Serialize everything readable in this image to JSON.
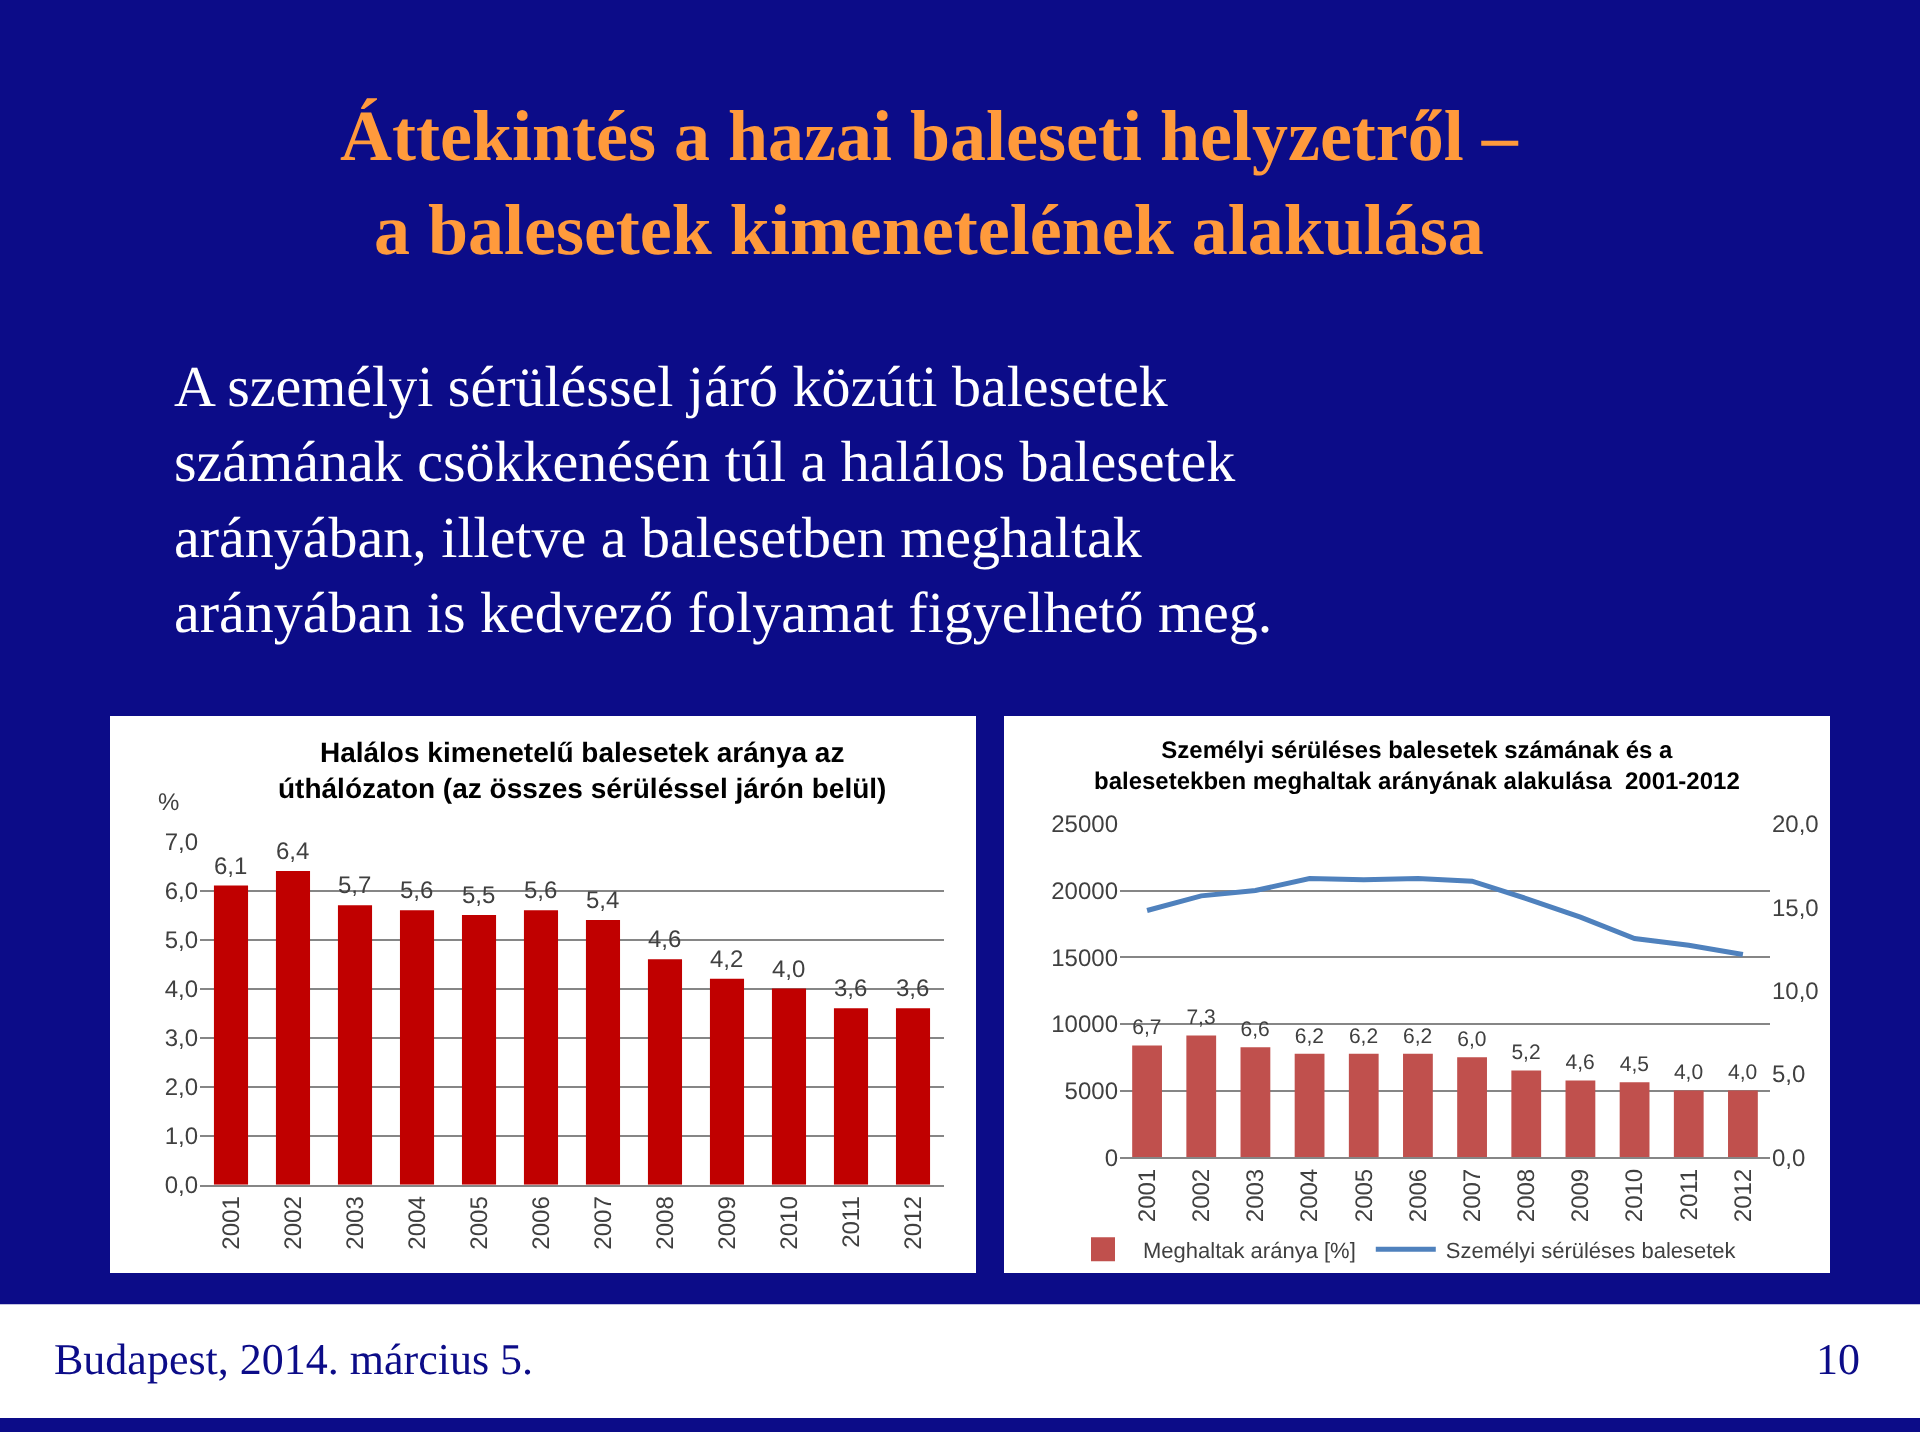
{
  "chart_data": [
    {
      "type": "other",
      "title": "Áttekintés a hazai baleseti helyzetről –\na balesetek kimenetelének alakulása",
      "annotations": [
        "A személyi sérüléssel járó közúti balesetek\nszámának csökkenésén túl a halálos balesetek\narányában, illetve a balesetben meghaltak\narányában is kedvező folyamat figyelhető meg.",
        "Budapest, 2014. március 5.",
        "10"
      ]
    },
    {
      "type": "bar",
      "title": "Halálos kimenetelű balesetek aránya az\núthálózaton (az összes sérüléssel járón belül)",
      "ylabel": "%",
      "categories": [
        "2001",
        "2002",
        "2003",
        "2004",
        "2005",
        "2006",
        "2007",
        "2008",
        "2009",
        "2010",
        "2011",
        "2012"
      ],
      "series": [
        {
          "color": "#c00000",
          "values": [
            6.1,
            6.4,
            5.7,
            5.6,
            5.5,
            5.6,
            5.4,
            4.6,
            4.2,
            4.0,
            3.6,
            3.6
          ],
          "value_labels": [
            "6,1",
            "6,4",
            "5,7",
            "5,6",
            "5,5",
            "5,6",
            "5,4",
            "4,6",
            "4,2",
            "4,0",
            "3,6",
            "3,6"
          ]
        }
      ],
      "ylim": [
        0,
        7
      ],
      "yticks": [
        {
          "value": 0,
          "label": "0,0"
        },
        {
          "value": 1,
          "label": "1,0"
        },
        {
          "value": 2,
          "label": "2,0"
        },
        {
          "value": 3,
          "label": "3,0"
        },
        {
          "value": 4,
          "label": "4,0"
        },
        {
          "value": 5,
          "label": "5,0"
        },
        {
          "value": 6,
          "label": "6,0"
        },
        {
          "value": 7,
          "label": "7,0"
        }
      ],
      "grid": "y",
      "legend": false
    },
    {
      "type": "bar",
      "title": "Személyi sérüléses balesetek számának és a\nbalesetekben meghaltak arányának alakulása  2001-2012",
      "categories": [
        "2001",
        "2002",
        "2003",
        "2004",
        "2005",
        "2006",
        "2007",
        "2008",
        "2009",
        "2010",
        "2011",
        "2012"
      ],
      "series": [
        {
          "name": "Meghaltak aránya [%]",
          "type": "bar",
          "axis": "y2",
          "color": "#c0504d",
          "values": [
            6.7,
            7.3,
            6.6,
            6.2,
            6.2,
            6.2,
            6.0,
            5.2,
            4.6,
            4.5,
            4.0,
            4.0
          ],
          "value_labels": [
            "6,7",
            "7,3",
            "6,6",
            "6,2",
            "6,2",
            "6,2",
            "6,0",
            "5,2",
            "4,6",
            "4,5",
            "4,0",
            "4,0"
          ]
        },
        {
          "name": "Személyi sérüléses balesetek",
          "type": "line",
          "color": "#4f81bd",
          "values": [
            18500,
            19600,
            20000,
            20900,
            20800,
            20900,
            20700,
            19400,
            18000,
            16400,
            15900,
            15200
          ]
        }
      ],
      "ylim": [
        0,
        25000
      ],
      "yticks": [
        0,
        5000,
        10000,
        15000,
        20000,
        25000
      ],
      "y2lim": [
        0,
        20
      ],
      "y2ticks": [
        {
          "value": 0,
          "label": "0,0"
        },
        {
          "value": 5,
          "label": "5,0"
        },
        {
          "value": 10,
          "label": "10,0"
        },
        {
          "value": 15,
          "label": "15,0"
        },
        {
          "value": 20,
          "label": "20,0"
        }
      ],
      "grid": "y",
      "legend": "bottom",
      "line_style": "solid",
      "marker": "none"
    }
  ]
}
